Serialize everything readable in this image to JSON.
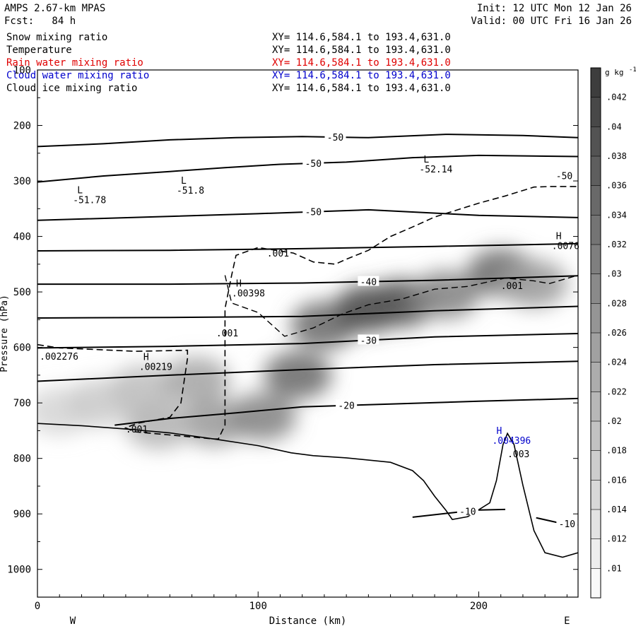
{
  "header": {
    "model": "AMPS 2.67-km MPAS",
    "init": "Init: 12 UTC Mon 12 Jan 26",
    "fcst": "Fcst:   84 h",
    "valid": "Valid: 00 UTC Fri 16 Jan 26"
  },
  "fields": [
    {
      "name": "Snow mixing ratio",
      "range": "XY= 114.6,584.1 to 193.4,631.0",
      "color": "#000000"
    },
    {
      "name": "Temperature",
      "range": "XY= 114.6,584.1 to 193.4,631.0",
      "color": "#000000"
    },
    {
      "name": "Rain water mixing ratio",
      "range": "XY= 114.6,584.1 to 193.4,631.0",
      "color": "#e00000"
    },
    {
      "name": "Cloud water mixing ratio",
      "range": "XY= 114.6,584.1 to 193.4,631.0",
      "color": "#0000cc"
    },
    {
      "name": "Cloud ice mixing ratio",
      "range": "XY= 114.6,584.1 to 193.4,631.0",
      "color": "#000000"
    }
  ],
  "chart_data": {
    "type": "heatmap",
    "xlabel": "Distance (km)",
    "ylabel": "Pressure (hPa)",
    "xlim": [
      0,
      245
    ],
    "ylim": [
      1050,
      100
    ],
    "xticks": [
      0,
      100,
      200
    ],
    "yticks": [
      100,
      200,
      300,
      400,
      500,
      600,
      700,
      800,
      900,
      1000
    ],
    "x_end_labels": {
      "left": "W",
      "right": "E"
    },
    "colorbar": {
      "unit": "g kg",
      "unit_exp": "-1",
      "ticks": [
        ".01",
        ".012",
        ".014",
        ".016",
        ".018",
        ".02",
        ".022",
        ".024",
        ".026",
        ".028",
        ".03",
        ".032",
        ".034",
        ".036",
        ".038",
        ".04",
        ".042"
      ],
      "min": 0.009,
      "max": 0.044
    },
    "snow_blobs": [
      {
        "x": 10,
        "p": 715,
        "value": 0.016
      },
      {
        "x": 28,
        "p": 700,
        "value": 0.018
      },
      {
        "x": 48,
        "p": 675,
        "value": 0.02
      },
      {
        "x": 72,
        "p": 660,
        "value": 0.024
      },
      {
        "x": 80,
        "p": 735,
        "value": 0.026
      },
      {
        "x": 102,
        "p": 725,
        "value": 0.03
      },
      {
        "x": 118,
        "p": 650,
        "value": 0.034
      },
      {
        "x": 130,
        "p": 560,
        "value": 0.034
      },
      {
        "x": 150,
        "p": 530,
        "value": 0.04
      },
      {
        "x": 165,
        "p": 520,
        "value": 0.038
      },
      {
        "x": 185,
        "p": 505,
        "value": 0.03
      },
      {
        "x": 210,
        "p": 465,
        "value": 0.034
      },
      {
        "x": 225,
        "p": 485,
        "value": 0.026
      },
      {
        "x": 55,
        "p": 740,
        "value": 0.022
      }
    ],
    "isotherms": [
      {
        "label": "-50",
        "pts": [
          [
            0,
            238
          ],
          [
            30,
            233
          ],
          [
            60,
            226
          ],
          [
            90,
            222
          ],
          [
            120,
            220
          ],
          [
            150,
            222
          ],
          [
            185,
            216
          ],
          [
            220,
            218
          ],
          [
            245,
            222
          ]
        ]
      },
      {
        "label": "-50",
        "pts": [
          [
            0,
            302
          ],
          [
            30,
            291
          ],
          [
            60,
            283
          ],
          [
            85,
            276
          ],
          [
            110,
            270
          ],
          [
            140,
            266
          ],
          [
            170,
            258
          ],
          [
            200,
            254
          ],
          [
            245,
            256
          ]
        ]
      },
      {
        "label": "-50",
        "pts": [
          [
            0,
            371
          ],
          [
            50,
            365
          ],
          [
            100,
            359
          ],
          [
            150,
            352
          ],
          [
            200,
            362
          ],
          [
            245,
            366
          ]
        ]
      },
      {
        "label": "",
        "pts": [
          [
            0,
            426
          ],
          [
            60,
            425
          ],
          [
            120,
            422
          ],
          [
            180,
            418
          ],
          [
            245,
            413
          ]
        ]
      },
      {
        "label": "-40",
        "pts": [
          [
            0,
            486
          ],
          [
            60,
            486
          ],
          [
            120,
            484
          ],
          [
            180,
            479
          ],
          [
            245,
            471
          ]
        ]
      },
      {
        "label": "",
        "pts": [
          [
            0,
            547
          ],
          [
            60,
            546
          ],
          [
            120,
            544
          ],
          [
            180,
            534
          ],
          [
            245,
            526
          ]
        ]
      },
      {
        "label": "-30",
        "pts": [
          [
            0,
            601
          ],
          [
            60,
            598
          ],
          [
            120,
            593
          ],
          [
            180,
            581
          ],
          [
            245,
            575
          ]
        ]
      },
      {
        "label": "",
        "pts": [
          [
            0,
            661
          ],
          [
            60,
            650
          ],
          [
            120,
            640
          ],
          [
            180,
            631
          ],
          [
            245,
            625
          ]
        ]
      },
      {
        "label": "-20",
        "pts": [
          [
            35,
            740
          ],
          [
            60,
            728
          ],
          [
            90,
            718
          ],
          [
            120,
            707
          ],
          [
            160,
            702
          ],
          [
            200,
            697
          ],
          [
            245,
            692
          ]
        ]
      },
      {
        "label": "-10",
        "pts": [
          [
            170,
            906
          ],
          [
            190,
            897
          ],
          [
            200,
            893
          ],
          [
            212,
            892
          ]
        ]
      },
      {
        "label": "-10",
        "pts": [
          [
            226,
            907
          ],
          [
            235,
            915
          ],
          [
            245,
            920
          ]
        ]
      }
    ],
    "terrain": {
      "pts": [
        [
          0,
          737
        ],
        [
          20,
          741
        ],
        [
          40,
          747
        ],
        [
          60,
          754
        ],
        [
          80,
          765
        ],
        [
          100,
          777
        ],
        [
          115,
          790
        ],
        [
          125,
          795
        ],
        [
          140,
          799
        ],
        [
          160,
          807
        ],
        [
          170,
          822
        ],
        [
          175,
          840
        ],
        [
          180,
          868
        ],
        [
          185,
          893
        ],
        [
          188,
          910
        ],
        [
          195,
          905
        ],
        [
          205,
          880
        ],
        [
          208,
          840
        ],
        [
          211,
          775
        ],
        [
          213,
          755
        ],
        [
          216,
          775
        ],
        [
          220,
          848
        ],
        [
          225,
          930
        ],
        [
          230,
          970
        ],
        [
          238,
          978
        ],
        [
          245,
          970
        ]
      ]
    },
    "cloud_ice_contour": {
      "label": ".001",
      "pts": [
        [
          0,
          595
        ],
        [
          10,
          601
        ],
        [
          28,
          604
        ],
        [
          44,
          607
        ],
        [
          58,
          606
        ],
        [
          68,
          605
        ],
        [
          68,
          620
        ],
        [
          65,
          700
        ],
        [
          60,
          726
        ],
        [
          45,
          737
        ],
        [
          40,
          745
        ],
        [
          44,
          752
        ],
        [
          80,
          765
        ],
        [
          82,
          765
        ],
        [
          85,
          740
        ],
        [
          85,
          530
        ],
        [
          88,
          470
        ],
        [
          90,
          434
        ],
        [
          100,
          420
        ],
        [
          116,
          430
        ],
        [
          125,
          446
        ],
        [
          135,
          450
        ],
        [
          140,
          441
        ],
        [
          150,
          425
        ],
        [
          160,
          400
        ],
        [
          170,
          383
        ],
        [
          180,
          365
        ],
        [
          200,
          340
        ],
        [
          212,
          327
        ],
        [
          225,
          311
        ],
        [
          233,
          310
        ],
        [
          245,
          310
        ]
      ]
    },
    "lower_ice_contour": {
      "pts": [
        [
          85,
          470
        ],
        [
          88,
          520
        ],
        [
          100,
          537
        ],
        [
          112,
          580
        ],
        [
          125,
          565
        ],
        [
          138,
          540
        ],
        [
          150,
          523
        ],
        [
          165,
          513
        ],
        [
          180,
          495
        ],
        [
          195,
          490
        ],
        [
          212,
          475
        ],
        [
          225,
          480
        ],
        [
          232,
          485
        ],
        [
          238,
          478
        ],
        [
          245,
          470
        ]
      ]
    },
    "markers": [
      {
        "letter": "L",
        "value": "-51.78",
        "x": 18,
        "p": 322,
        "color": "#000000"
      },
      {
        "letter": "L",
        "value": "-51.8",
        "x": 65,
        "p": 305,
        "color": "#000000"
      },
      {
        "letter": "L",
        "value": "-52.14",
        "x": 175,
        "p": 267,
        "color": "#000000"
      },
      {
        "letter": "H",
        "value": ".00398",
        "x": 90,
        "p": 490,
        "color": "#000000"
      },
      {
        "letter": "H",
        "value": ".00219",
        "x": 48,
        "p": 623,
        "color": "#000000"
      },
      {
        "letter": "H",
        "value": ".0076",
        "x": 235,
        "p": 405,
        "color": "#000000"
      },
      {
        "letter": "H",
        "value": ".004396",
        "x": 208,
        "p": 756,
        "color": "#0000cc"
      }
    ],
    "annotations": [
      {
        "text": ".001",
        "x": 104,
        "p": 436
      },
      {
        "text": ".001",
        "x": 81,
        "p": 580
      },
      {
        "text": ".001",
        "x": 40,
        "p": 753
      },
      {
        "text": ".001",
        "x": 210,
        "p": 495
      },
      {
        "text": ".003",
        "x": 213,
        "p": 798
      },
      {
        "text": ".002276",
        "x": 1,
        "p": 622
      },
      {
        "text": "-50",
        "x": 235,
        "p": 297
      }
    ]
  }
}
